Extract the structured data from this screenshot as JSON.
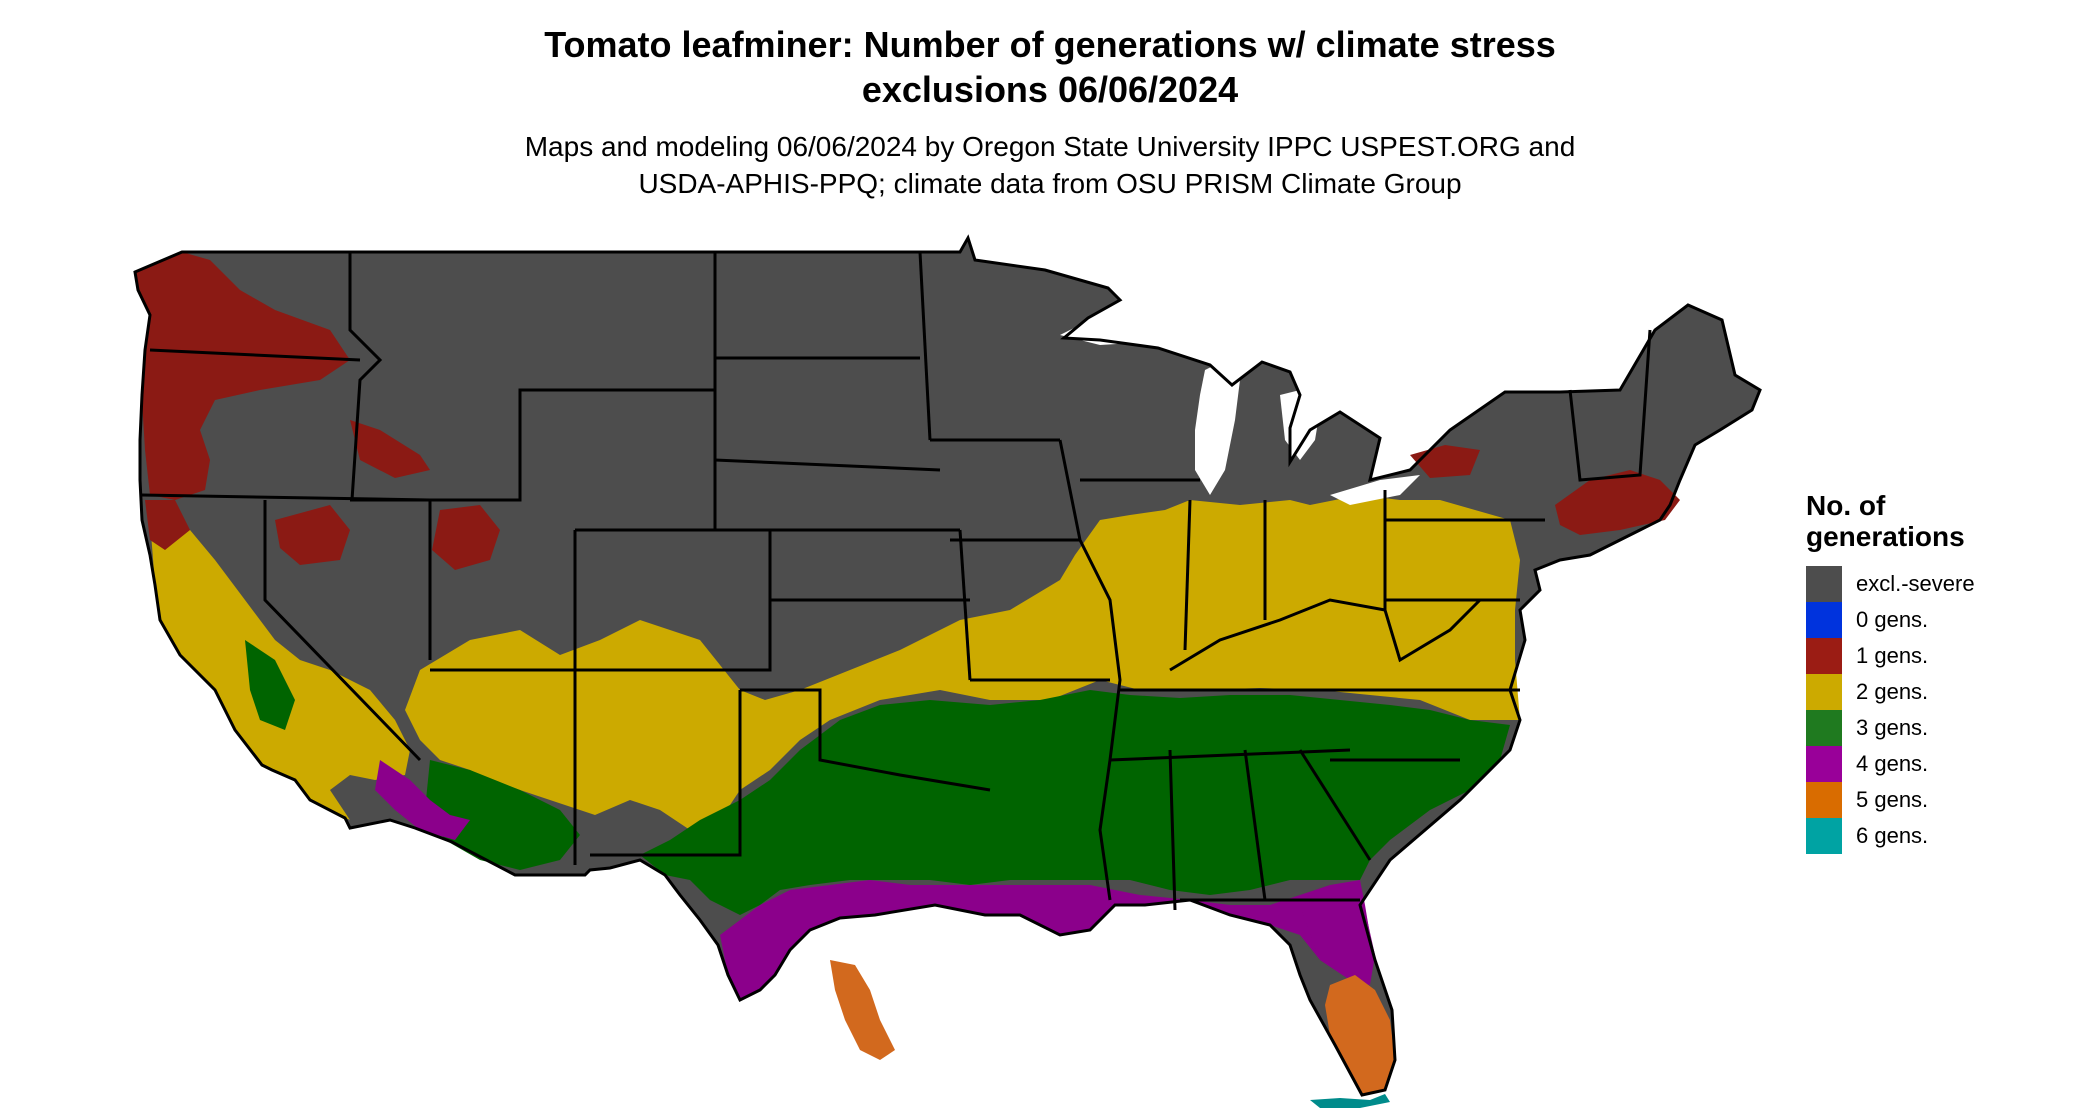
{
  "title": "Tomato leafminer: Number of generations w/ climate stress\nexclusions 06/06/2024",
  "title_line1": "Tomato leafminer: Number of generations w/ climate stress",
  "title_line2": "exclusions 06/06/2024",
  "subtitle_line1": "Maps and modeling 06/06/2024 by Oregon State University IPPC USPEST.ORG and",
  "subtitle_line2": "USDA-APHIS-PPQ; climate data from OSU PRISM Climate Group",
  "legend": {
    "title": "No. of\ngenerations",
    "items": [
      {
        "label": "excl.-severe",
        "color": "#4d4d4d"
      },
      {
        "label": "0 gens.",
        "color": "#0033dd"
      },
      {
        "label": "1 gens.",
        "color": "#9b1c14"
      },
      {
        "label": "2 gens.",
        "color": "#ccaa00"
      },
      {
        "label": "3 gens.",
        "color": "#1f7a1f"
      },
      {
        "label": "4 gens.",
        "color": "#990099"
      },
      {
        "label": "5 gens.",
        "color": "#d96c00"
      },
      {
        "label": "6 gens.",
        "color": "#00a3a3"
      }
    ]
  },
  "map_colors": {
    "excl_severe": "#4d4d4d",
    "gens_1": "#8b1a14",
    "gens_2": "#ccaa00",
    "gens_3": "#006400",
    "gens_4": "#8b008b",
    "gens_5": "#d2691e",
    "gens_6": "#008b8b",
    "borders": "#000000"
  }
}
